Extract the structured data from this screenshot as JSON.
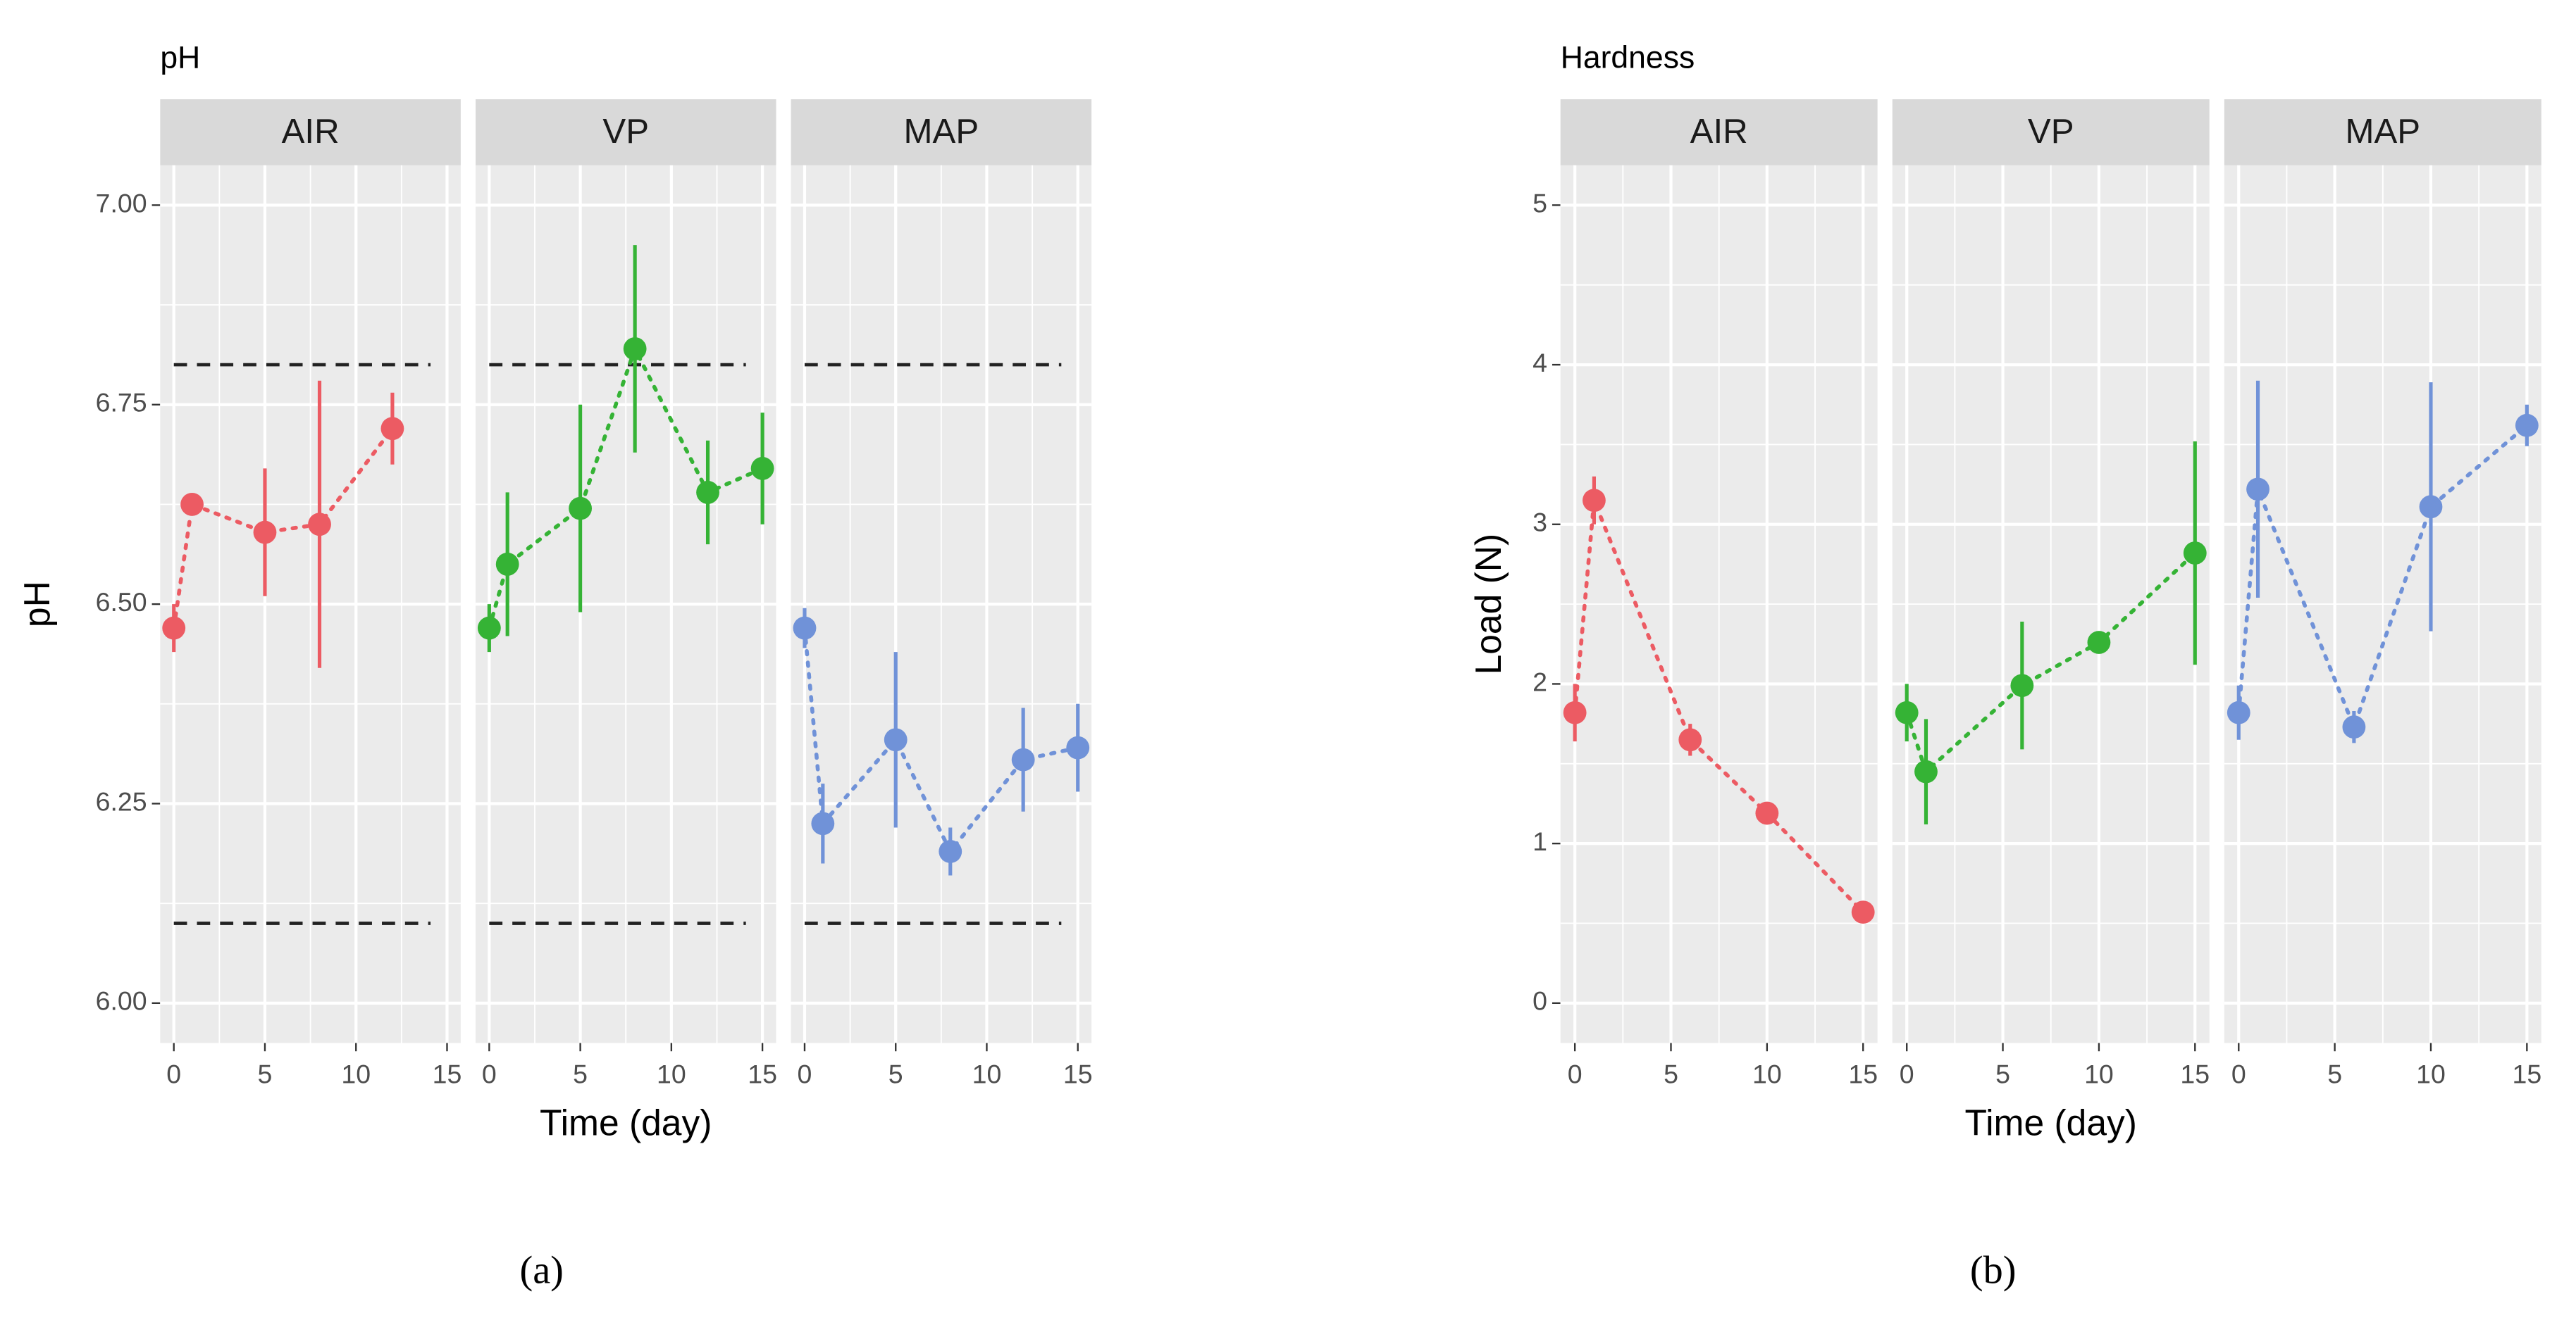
{
  "chart_data": [
    {
      "type": "line",
      "title": "pH",
      "xlabel": "Time (day)",
      "ylabel": "pH",
      "caption": "(a)",
      "xlim": [
        -0.75,
        15.75
      ],
      "xticks": [
        0,
        5,
        10,
        15
      ],
      "ylim": [
        5.95,
        7.05
      ],
      "yticks": [
        {
          "value": 6,
          "label": "6.00"
        },
        {
          "value": 6.25,
          "label": "6.25"
        },
        {
          "value": 6.5,
          "label": "6.50"
        },
        {
          "value": 6.75,
          "label": "6.75"
        },
        {
          "value": 7,
          "label": "7.00"
        }
      ],
      "grid": true,
      "hlines": [
        6.1,
        6.8
      ],
      "panels": [
        {
          "name": "AIR",
          "color": "#ec5b63",
          "x": [
            0,
            1,
            5,
            8,
            12
          ],
          "values": [
            6.47,
            6.625,
            6.59,
            6.6,
            6.72
          ],
          "errors": [
            0.03,
            0,
            0.08,
            0.18,
            0.045
          ]
        },
        {
          "name": "VP",
          "color": "#35b335",
          "x": [
            0,
            1,
            5,
            8,
            12,
            15
          ],
          "values": [
            6.47,
            6.55,
            6.62,
            6.82,
            6.64,
            6.67
          ],
          "errors": [
            0.03,
            0.09,
            0.13,
            0.13,
            0.065,
            0.07
          ]
        },
        {
          "name": "MAP",
          "color": "#7092d8",
          "x": [
            0,
            1,
            5,
            8,
            12,
            15
          ],
          "values": [
            6.47,
            6.225,
            6.33,
            6.19,
            6.305,
            6.32
          ],
          "errors": [
            0.025,
            0.05,
            0.11,
            0.03,
            0.065,
            0.055
          ]
        }
      ]
    },
    {
      "type": "line",
      "title": "Hardness",
      "xlabel": "Time (day)",
      "ylabel": "Load (N)",
      "caption": "(b)",
      "xlim": [
        -0.75,
        15.75
      ],
      "xticks": [
        0,
        5,
        10,
        15
      ],
      "ylim": [
        -0.25,
        5.25
      ],
      "yticks": [
        0,
        1,
        2,
        3,
        4,
        5
      ],
      "grid": true,
      "panels": [
        {
          "name": "AIR",
          "color": "#ec5b63",
          "x": [
            0,
            1,
            6,
            10,
            15
          ],
          "values": [
            1.82,
            3.15,
            1.65,
            1.19,
            0.57
          ],
          "errors": [
            0.18,
            0.15,
            0.1,
            0.03,
            0.05
          ]
        },
        {
          "name": "VP",
          "color": "#35b335",
          "x": [
            0,
            1,
            6,
            10,
            15
          ],
          "values": [
            1.82,
            1.45,
            1.99,
            2.26,
            2.82
          ],
          "errors": [
            0.18,
            0.33,
            0.4,
            0.06,
            0.7
          ]
        },
        {
          "name": "MAP",
          "color": "#7092d8",
          "x": [
            0,
            1,
            6,
            10,
            15
          ],
          "values": [
            1.82,
            3.22,
            1.73,
            3.11,
            3.62
          ],
          "errors": [
            0.17,
            0.68,
            0.1,
            0.78,
            0.13
          ]
        }
      ]
    }
  ]
}
